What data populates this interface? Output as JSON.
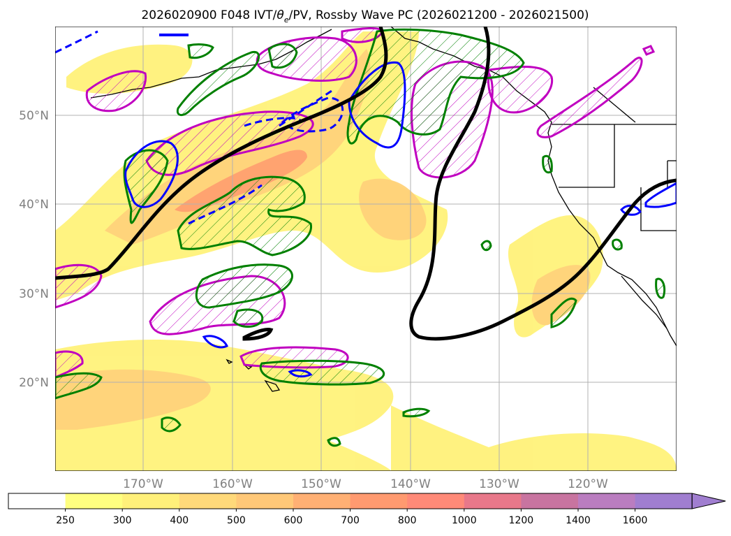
{
  "title": "2026020900 F048 IVT/θe/PV, Rossby Wave PC (2026021200 - 2026021500)",
  "title_parts": {
    "prefix": "2026020900 F048 IVT/",
    "theta": "θ",
    "sub": "e",
    "suffix": "/PV, Rossby Wave PC (2026021200 - 2026021500)"
  },
  "map": {
    "lat_labels": [
      "50°N",
      "40°N",
      "30°N",
      "20°N"
    ],
    "lon_labels": [
      "170°W",
      "160°W",
      "150°W",
      "140°W",
      "130°W",
      "120°W"
    ],
    "lat_values": [
      50,
      40,
      30,
      20
    ],
    "lon_values": [
      -170,
      -160,
      -150,
      -140,
      -130,
      -120
    ]
  },
  "colorbar": {
    "labels": [
      "250",
      "300",
      "400",
      "500",
      "600",
      "700",
      "800",
      "1000",
      "1200",
      "1400",
      "1600"
    ],
    "colors": [
      "#ffffff",
      "#ffff80",
      "#fff07a",
      "#ffd97a",
      "#ffc878",
      "#ffb074",
      "#ff9a70",
      "#ff8a78",
      "#e8788a",
      "#c874a0",
      "#ba7dc0",
      "#a07ed0"
    ],
    "extend": "max"
  },
  "colors": {
    "ivt_low": "#fff27a",
    "ivt_mid": "#ffd27a",
    "ivt_high": "#ff9a6e",
    "pv_positive": "#c000c0",
    "theta_green": "#008000",
    "theta_blue": "#0000ff",
    "rossby_line": "#000000"
  }
}
